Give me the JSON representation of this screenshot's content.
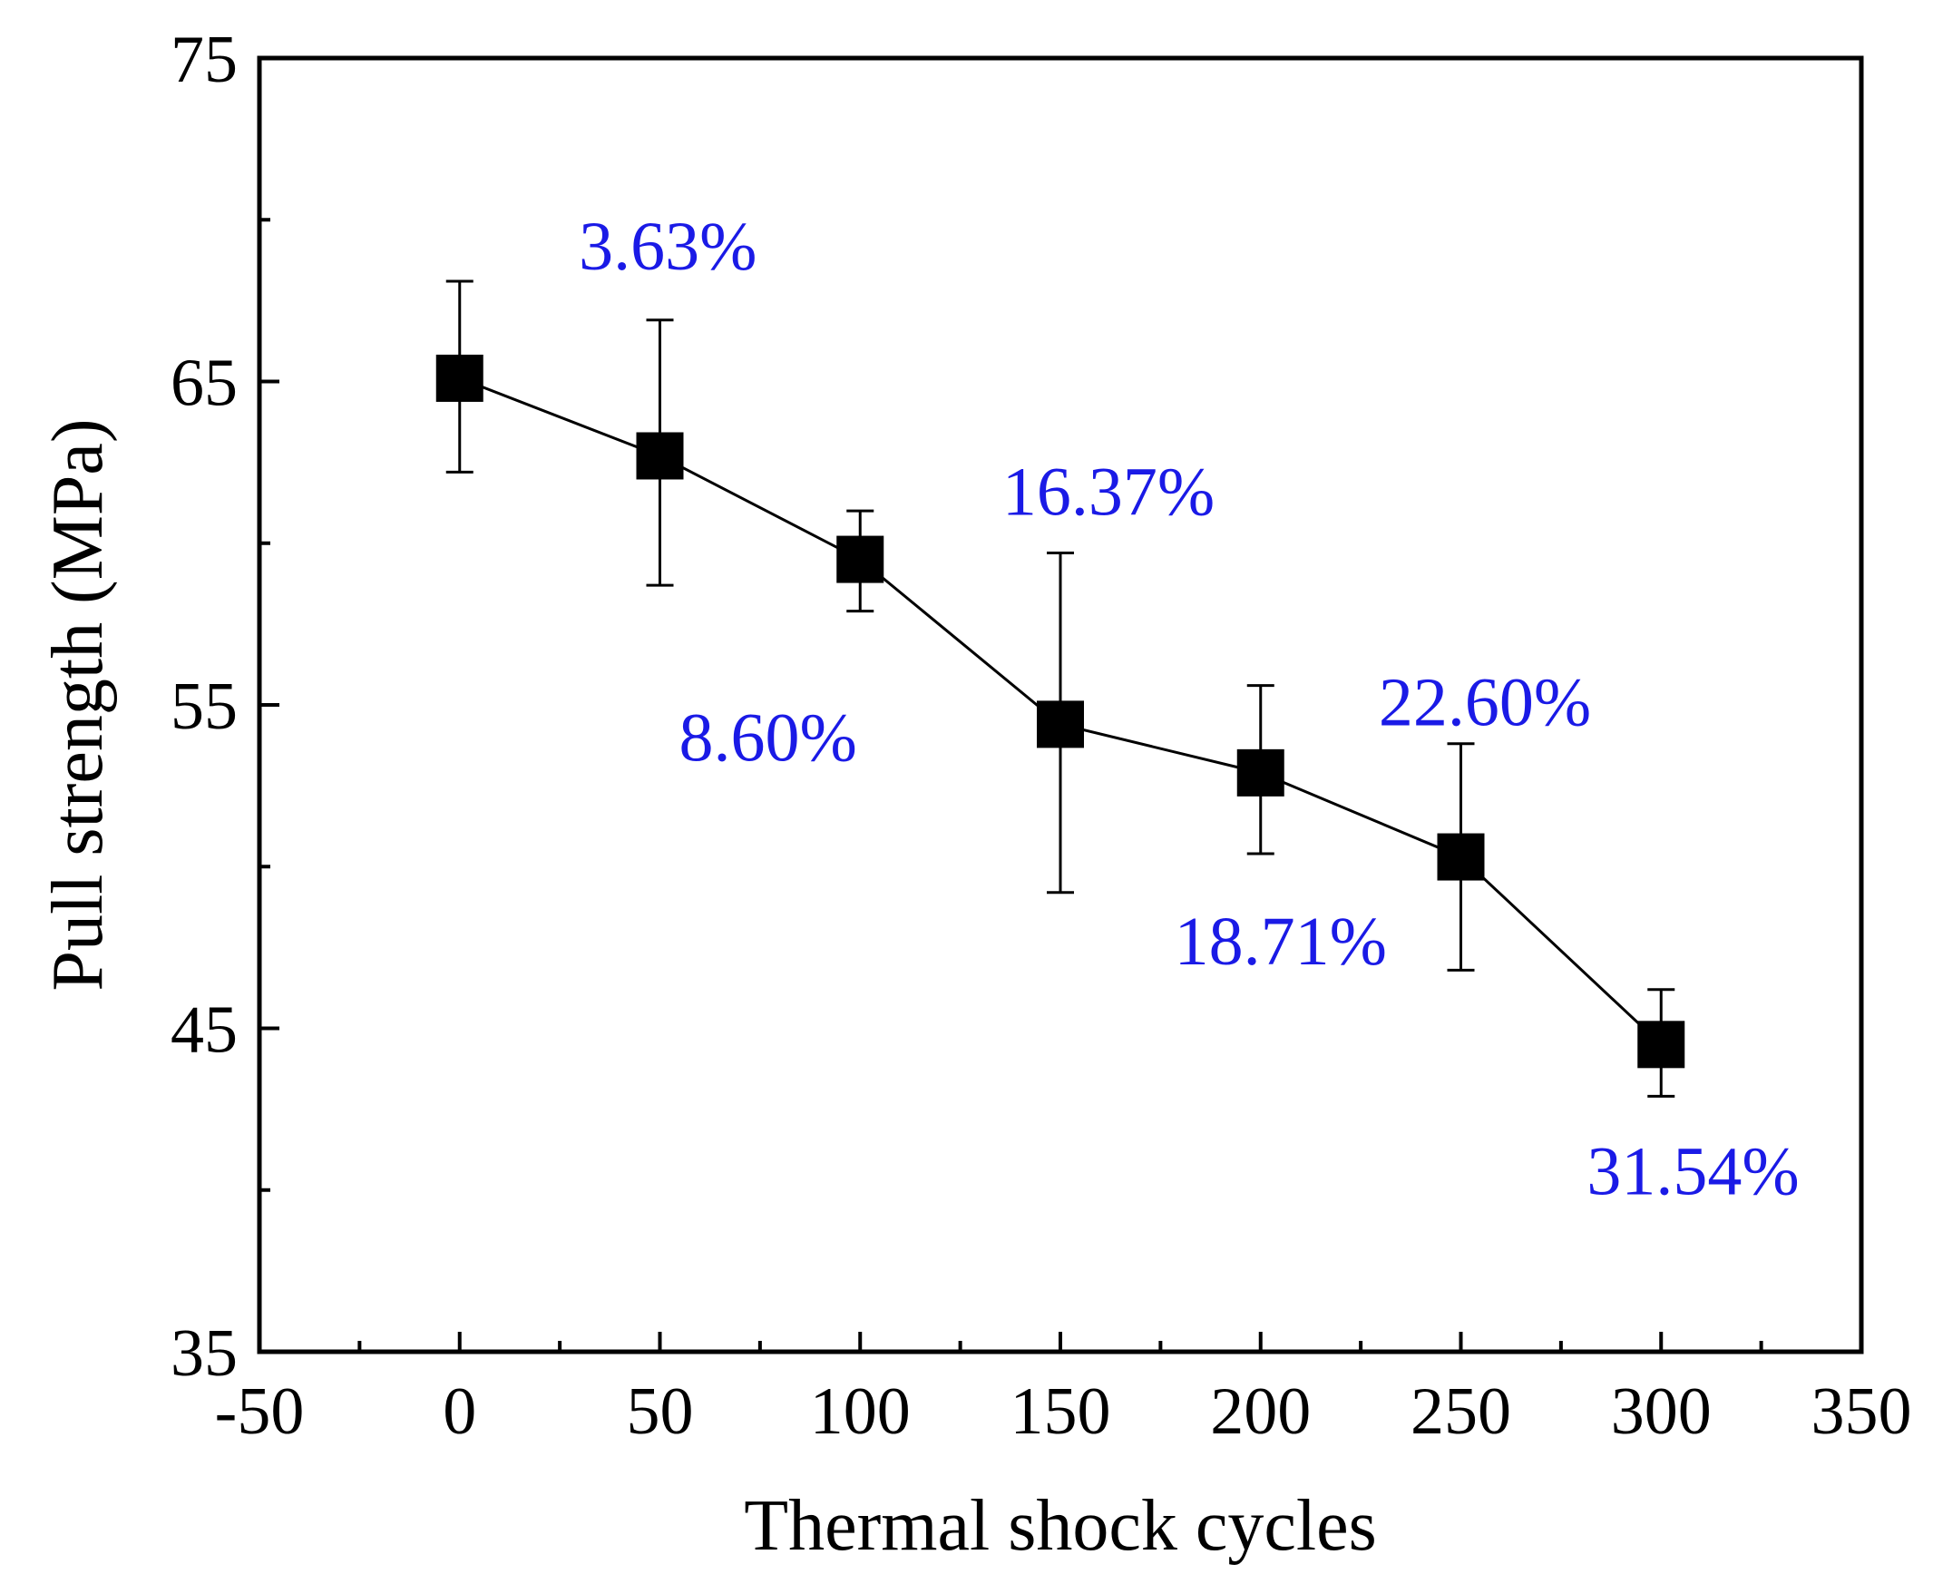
{
  "chart_data": {
    "type": "scatter",
    "title": "",
    "xlabel": "Thermal shock cycles",
    "ylabel": "Pull strength (MPa)",
    "xlim": [
      -50,
      350
    ],
    "ylim": [
      35,
      75
    ],
    "x_ticks": [
      -50,
      0,
      50,
      100,
      150,
      200,
      250,
      300,
      350
    ],
    "y_ticks": [
      35,
      45,
      55,
      65,
      75
    ],
    "x_minor_step": 25,
    "y_minor_step": 5,
    "grid": false,
    "series": [
      {
        "name": "Pull strength",
        "marker": "square",
        "line": true,
        "color": "#000000",
        "x": [
          0,
          50,
          100,
          150,
          200,
          250,
          300
        ],
        "y": [
          65.1,
          62.7,
          59.5,
          54.4,
          52.9,
          50.3,
          44.5
        ],
        "error_upper": [
          68.1,
          66.9,
          61.0,
          59.7,
          55.6,
          53.8,
          46.2
        ],
        "error_lower": [
          62.2,
          58.7,
          57.9,
          49.2,
          50.4,
          46.8,
          42.9
        ]
      }
    ],
    "annotations": [
      {
        "text": "3.63%",
        "x": 52,
        "y": 69.2
      },
      {
        "text": "8.60%",
        "x": 77,
        "y": 54.0
      },
      {
        "text": "16.37%",
        "x": 162,
        "y": 61.6
      },
      {
        "text": "18.71%",
        "x": 205,
        "y": 47.7
      },
      {
        "text": "22.60%",
        "x": 256,
        "y": 55.1
      },
      {
        "text": "31.54%",
        "x": 308,
        "y": 40.6
      }
    ],
    "annotation_color": "#1a1ae6"
  }
}
